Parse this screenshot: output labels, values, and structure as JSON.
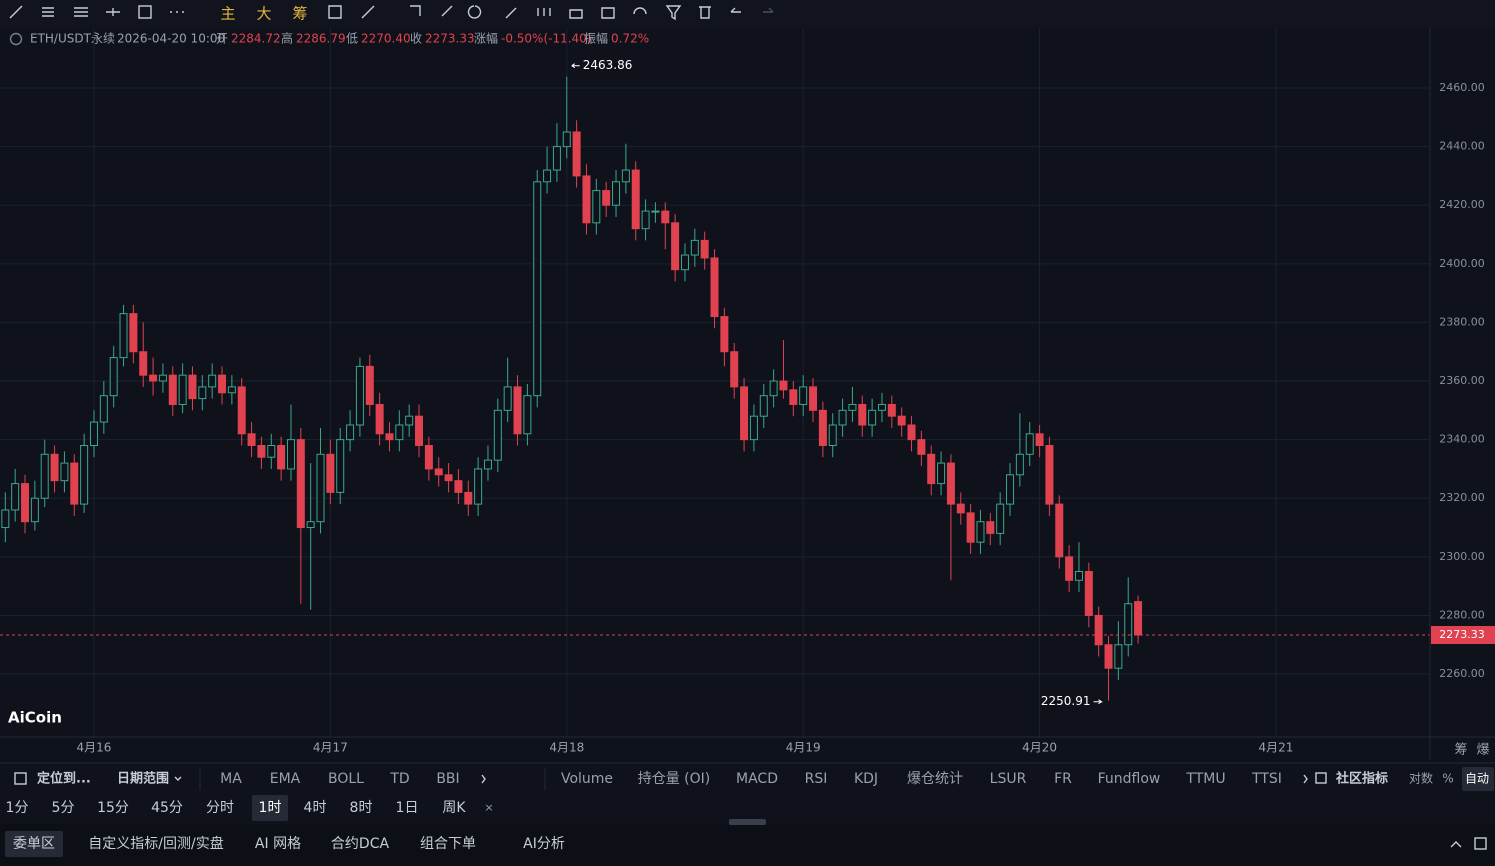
{
  "toolbar": {
    "buttons": [
      "主",
      "大",
      "筹"
    ]
  },
  "symbol_bar": {
    "symbol": "ETH/USDT永续",
    "time": "2026-04-20 10:00",
    "open_label": "开",
    "open": "2284.72",
    "high_label": "高",
    "high": "2286.79",
    "low_label": "低",
    "low": "2270.40",
    "close_label": "收",
    "close": "2273.33",
    "change_label": "涨幅",
    "change": "-0.50%(-11.40)",
    "amplitude_label": "振幅",
    "amplitude": "0.72%"
  },
  "chart_data": {
    "type": "candlestick",
    "up_color": "#3aa88c",
    "down_color": "#e0424f",
    "grid": true,
    "ylim": [
      2239.2,
      2479.8
    ],
    "yticks": [
      {
        "value": 2260,
        "label": "2260.00"
      },
      {
        "value": 2280,
        "label": "2280.00"
      },
      {
        "value": 2300,
        "label": "2300.00"
      },
      {
        "value": 2320,
        "label": "2320.00"
      },
      {
        "value": 2340,
        "label": "2340.00"
      },
      {
        "value": 2360,
        "label": "2360.00"
      },
      {
        "value": 2380,
        "label": "2380.00"
      },
      {
        "value": 2400,
        "label": "2400.00"
      },
      {
        "value": 2420,
        "label": "2420.00"
      },
      {
        "value": 2440,
        "label": "2440.00"
      },
      {
        "value": 2460,
        "label": "2460.00"
      }
    ],
    "categories": [
      null,
      null,
      null,
      null,
      null,
      null,
      null,
      null,
      null,
      "4月16",
      null,
      null,
      null,
      null,
      null,
      null,
      null,
      null,
      null,
      null,
      null,
      null,
      null,
      null,
      null,
      null,
      null,
      null,
      null,
      null,
      null,
      null,
      null,
      "4月17",
      null,
      null,
      null,
      null,
      null,
      null,
      null,
      null,
      null,
      null,
      null,
      null,
      null,
      null,
      null,
      null,
      null,
      null,
      null,
      null,
      null,
      null,
      null,
      "4月18",
      null,
      null,
      null,
      null,
      null,
      null,
      null,
      null,
      null,
      null,
      null,
      null,
      null,
      null,
      null,
      null,
      null,
      null,
      null,
      null,
      null,
      null,
      null,
      "4月19",
      null,
      null,
      null,
      null,
      null,
      null,
      null,
      null,
      null,
      null,
      null,
      null,
      null,
      null,
      null,
      null,
      null,
      null,
      null,
      null,
      null,
      null,
      null,
      "4月20",
      null,
      null,
      null,
      null,
      null,
      null,
      null,
      null,
      null,
      null,
      null,
      null,
      null,
      null,
      null,
      null,
      null,
      null,
      null,
      null,
      null,
      null,
      null,
      "4月21",
      null,
      null,
      null,
      null,
      null,
      null,
      null,
      null,
      null,
      null,
      null,
      null,
      null,
      null,
      null
    ],
    "candles": [
      [
        2310,
        2322,
        2305,
        2316
      ],
      [
        2316,
        2330,
        2312,
        2325
      ],
      [
        2325,
        2328,
        2308,
        2312
      ],
      [
        2312,
        2326,
        2309,
        2320
      ],
      [
        2320,
        2340,
        2317,
        2335
      ],
      [
        2335,
        2338,
        2322,
        2326
      ],
      [
        2326,
        2336,
        2322,
        2332
      ],
      [
        2332,
        2335,
        2314,
        2318
      ],
      [
        2318,
        2342,
        2315,
        2338
      ],
      [
        2338,
        2350,
        2334,
        2346
      ],
      [
        2346,
        2360,
        2342,
        2355
      ],
      [
        2355,
        2372,
        2351,
        2368
      ],
      [
        2368,
        2386,
        2365,
        2383
      ],
      [
        2383,
        2386,
        2366,
        2370
      ],
      [
        2370,
        2380,
        2358,
        2362
      ],
      [
        2362,
        2368,
        2355,
        2360
      ],
      [
        2360,
        2366,
        2356,
        2362
      ],
      [
        2362,
        2365,
        2348,
        2352
      ],
      [
        2352,
        2366,
        2349,
        2362
      ],
      [
        2362,
        2365,
        2350,
        2354
      ],
      [
        2354,
        2362,
        2350,
        2358
      ],
      [
        2358,
        2366,
        2354,
        2362
      ],
      [
        2362,
        2365,
        2352,
        2356
      ],
      [
        2356,
        2362,
        2352,
        2358
      ],
      [
        2358,
        2361,
        2338,
        2342
      ],
      [
        2342,
        2346,
        2334,
        2338
      ],
      [
        2338,
        2341,
        2330,
        2334
      ],
      [
        2334,
        2342,
        2330,
        2338
      ],
      [
        2338,
        2341,
        2326,
        2330
      ],
      [
        2330,
        2352,
        2326,
        2340
      ],
      [
        2340,
        2344,
        2284,
        2310
      ],
      [
        2310,
        2332,
        2282,
        2312
      ],
      [
        2312,
        2344,
        2308,
        2335
      ],
      [
        2335,
        2340,
        2318,
        2322
      ],
      [
        2322,
        2344,
        2318,
        2340
      ],
      [
        2340,
        2350,
        2336,
        2345
      ],
      [
        2345,
        2368,
        2341,
        2365
      ],
      [
        2365,
        2369,
        2348,
        2352
      ],
      [
        2352,
        2356,
        2338,
        2342
      ],
      [
        2342,
        2346,
        2336,
        2340
      ],
      [
        2340,
        2350,
        2336,
        2345
      ],
      [
        2345,
        2352,
        2341,
        2348
      ],
      [
        2348,
        2352,
        2334,
        2338
      ],
      [
        2338,
        2341,
        2326,
        2330
      ],
      [
        2330,
        2334,
        2324,
        2328
      ],
      [
        2328,
        2332,
        2322,
        2326
      ],
      [
        2326,
        2330,
        2318,
        2322
      ],
      [
        2322,
        2326,
        2314,
        2318
      ],
      [
        2318,
        2334,
        2314,
        2330
      ],
      [
        2330,
        2338,
        2326,
        2333
      ],
      [
        2333,
        2354,
        2329,
        2350
      ],
      [
        2350,
        2368,
        2346,
        2358
      ],
      [
        2358,
        2362,
        2338,
        2342
      ],
      [
        2342,
        2359,
        2338,
        2355
      ],
      [
        2355,
        2432,
        2351,
        2428
      ],
      [
        2428,
        2440,
        2424,
        2432
      ],
      [
        2432,
        2448,
        2428,
        2440
      ],
      [
        2440,
        2463.86,
        2436,
        2445
      ],
      [
        2445,
        2449,
        2426,
        2430
      ],
      [
        2430,
        2434,
        2410,
        2414
      ],
      [
        2414,
        2429,
        2410,
        2425
      ],
      [
        2425,
        2428,
        2416,
        2420
      ],
      [
        2420,
        2432,
        2416,
        2428
      ],
      [
        2428,
        2441,
        2424,
        2432
      ],
      [
        2432,
        2435,
        2408,
        2412
      ],
      [
        2412,
        2422,
        2408,
        2418
      ],
      [
        2418,
        2421,
        2414,
        2418
      ],
      [
        2418,
        2421,
        2405,
        2414
      ],
      [
        2414,
        2417,
        2394,
        2398
      ],
      [
        2398,
        2407,
        2394,
        2403
      ],
      [
        2403,
        2412,
        2399,
        2408
      ],
      [
        2408,
        2411,
        2398,
        2402
      ],
      [
        2402,
        2405,
        2378,
        2382
      ],
      [
        2382,
        2385,
        2365,
        2370
      ],
      [
        2370,
        2373,
        2354,
        2358
      ],
      [
        2358,
        2361,
        2336,
        2340
      ],
      [
        2340,
        2352,
        2336,
        2348
      ],
      [
        2348,
        2359,
        2344,
        2355
      ],
      [
        2355,
        2364,
        2351,
        2360
      ],
      [
        2360,
        2374,
        2354,
        2357
      ],
      [
        2357,
        2360,
        2348,
        2352
      ],
      [
        2352,
        2362,
        2348,
        2358
      ],
      [
        2358,
        2361,
        2346,
        2350
      ],
      [
        2350,
        2353,
        2334,
        2338
      ],
      [
        2338,
        2349,
        2334,
        2345
      ],
      [
        2345,
        2354,
        2341,
        2350
      ],
      [
        2350,
        2358,
        2346,
        2352
      ],
      [
        2352,
        2355,
        2341,
        2345
      ],
      [
        2345,
        2354,
        2341,
        2350
      ],
      [
        2350,
        2356,
        2346,
        2352
      ],
      [
        2352,
        2355,
        2344,
        2348
      ],
      [
        2348,
        2351,
        2341,
        2345
      ],
      [
        2345,
        2348,
        2336,
        2340
      ],
      [
        2340,
        2343,
        2331,
        2335
      ],
      [
        2335,
        2338,
        2321,
        2325
      ],
      [
        2325,
        2336,
        2321,
        2332
      ],
      [
        2332,
        2335,
        2292,
        2318
      ],
      [
        2318,
        2322,
        2311,
        2315
      ],
      [
        2315,
        2318,
        2301,
        2305
      ],
      [
        2305,
        2316,
        2301,
        2312
      ],
      [
        2312,
        2315,
        2304,
        2308
      ],
      [
        2308,
        2322,
        2304,
        2318
      ],
      [
        2318,
        2332,
        2314,
        2328
      ],
      [
        2328,
        2349,
        2324,
        2335
      ],
      [
        2335,
        2346,
        2331,
        2342
      ],
      [
        2342,
        2345,
        2334,
        2338
      ],
      [
        2338,
        2341,
        2314,
        2318
      ],
      [
        2318,
        2321,
        2296,
        2300
      ],
      [
        2300,
        2304,
        2288,
        2292
      ],
      [
        2292,
        2305,
        2288,
        2295
      ],
      [
        2295,
        2298,
        2276,
        2280
      ],
      [
        2280,
        2283,
        2266,
        2270
      ],
      [
        2270,
        2273,
        2250.91,
        2262
      ],
      [
        2262,
        2278,
        2258,
        2270
      ],
      [
        2270,
        2293,
        2266,
        2284
      ],
      [
        2284.72,
        2286.79,
        2270.4,
        2273.33
      ],
      null,
      null,
      null,
      null,
      null,
      null,
      null,
      null,
      null,
      null,
      null,
      null,
      null,
      null,
      null,
      null,
      null,
      null,
      null,
      null,
      null,
      null,
      null,
      null,
      null,
      null,
      null,
      null,
      null
    ]
  },
  "logo": "AiCoin",
  "side_buttons": [
    "筹",
    "爆"
  ],
  "indicator_bar": {
    "locate": "定位到...",
    "date_range": "日期范围",
    "main": [
      "MA",
      "EMA",
      "BOLL",
      "TD",
      "BBI"
    ],
    "sub": [
      "Volume",
      "持仓量 (OI)",
      "MACD",
      "RSI",
      "KDJ",
      "爆仓统计",
      "LSUR",
      "FR",
      "Fundflow",
      "TTMU",
      "TTSI"
    ],
    "community": "社区指标",
    "options": [
      "对数",
      "%",
      "自动"
    ]
  },
  "intervals": {
    "items": [
      "1分",
      "5分",
      "15分",
      "45分",
      "分时",
      "1时",
      "4时",
      "8时",
      "1日",
      "周K"
    ],
    "selected": 5
  },
  "tabs": {
    "items": [
      "委单区",
      "自定义指标/回测/实盘",
      "AI 网格",
      "合约DCA",
      "组合下单",
      "AI分析"
    ],
    "selected": 0
  }
}
